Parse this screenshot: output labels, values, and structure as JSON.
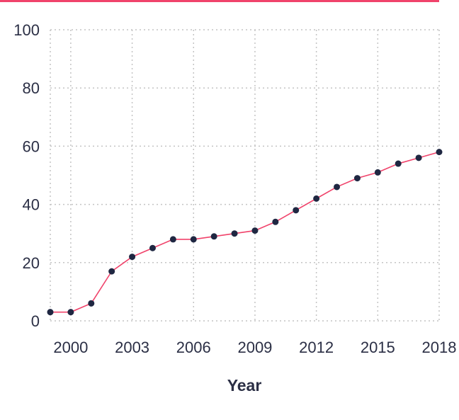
{
  "colors": {
    "accent": "#f0436b",
    "point": "#1f2742",
    "grid": "#c4c4c4",
    "text": "#2b2f45"
  },
  "chart_data": {
    "type": "line",
    "title": "",
    "xlabel": "Year",
    "ylabel": "",
    "xlim": [
      1999,
      2018
    ],
    "ylim": [
      0,
      100
    ],
    "x_ticks": [
      2000,
      2003,
      2006,
      2009,
      2012,
      2015,
      2018
    ],
    "y_ticks": [
      0,
      20,
      40,
      60,
      80,
      100
    ],
    "grid": true,
    "legend": "none",
    "series": [
      {
        "x": [
          1999,
          2000,
          2001,
          2002,
          2003,
          2004,
          2005,
          2006,
          2007,
          2008,
          2009,
          2010,
          2011,
          2012,
          2013,
          2014,
          2015,
          2016,
          2017,
          2018
        ],
        "y": [
          3,
          3,
          6,
          17,
          22,
          25,
          28,
          28,
          29,
          30,
          31,
          34,
          38,
          42,
          46,
          49,
          51,
          54,
          56,
          58
        ]
      }
    ]
  }
}
